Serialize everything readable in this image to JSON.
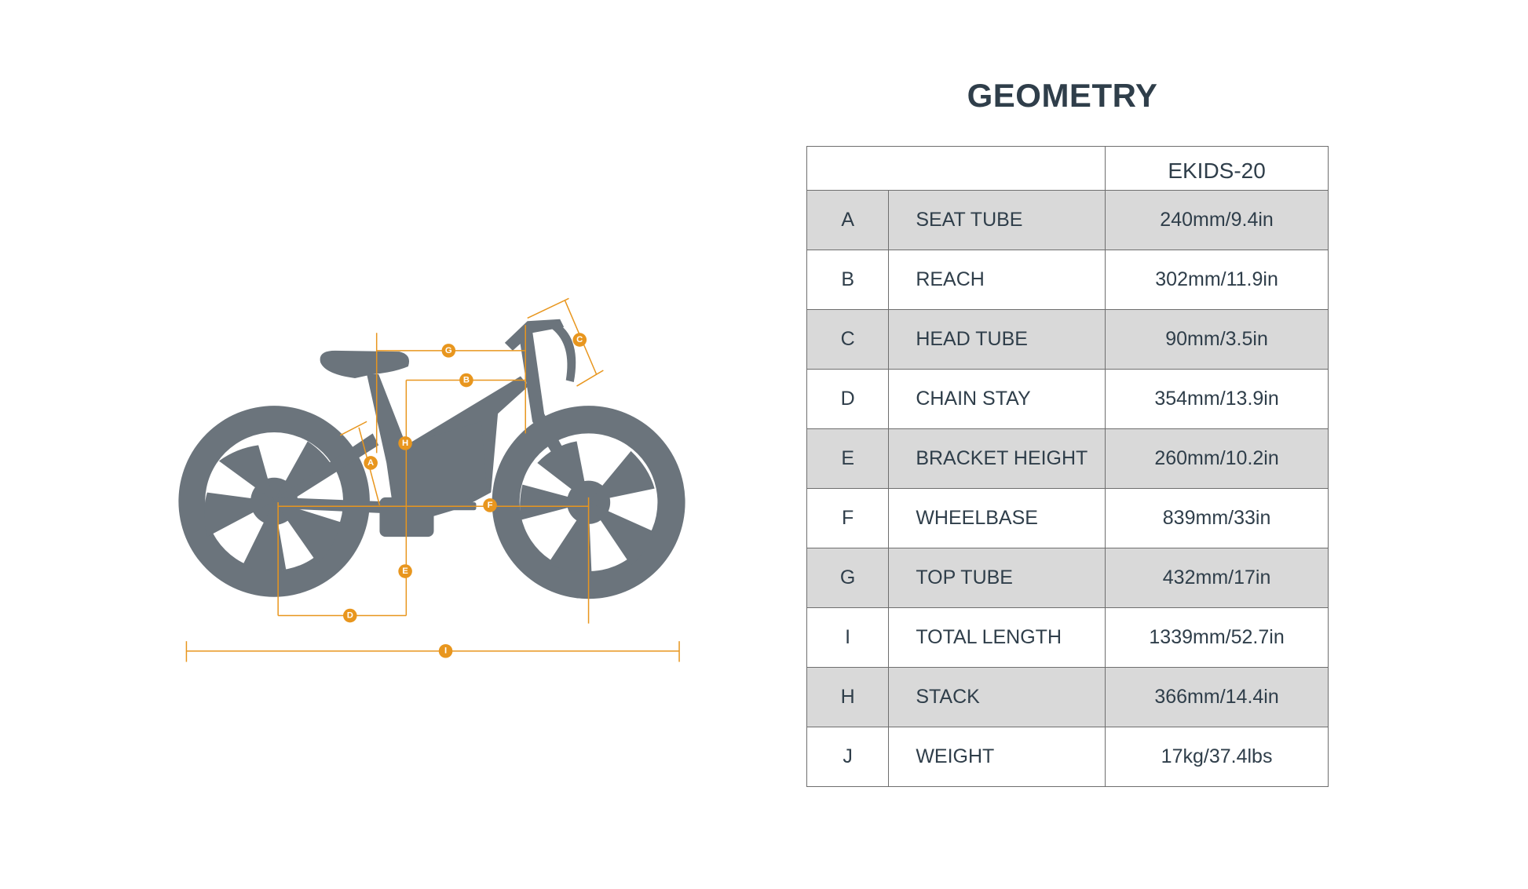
{
  "title": "GEOMETRY",
  "table": {
    "model": "EKIDS-20",
    "rows": [
      {
        "letter": "A",
        "name": "SEAT TUBE",
        "value": "240mm/9.4in"
      },
      {
        "letter": "B",
        "name": "REACH",
        "value": "302mm/11.9in"
      },
      {
        "letter": "C",
        "name": "HEAD TUBE",
        "value": "90mm/3.5in"
      },
      {
        "letter": "D",
        "name": "CHAIN STAY",
        "value": "354mm/13.9in"
      },
      {
        "letter": "E",
        "name": "BRACKET HEIGHT",
        "value": "260mm/10.2in"
      },
      {
        "letter": "F",
        "name": "WHEELBASE",
        "value": "839mm/33in"
      },
      {
        "letter": "G",
        "name": "TOP TUBE",
        "value": "432mm/17in"
      },
      {
        "letter": "I",
        "name": "TOTAL LENGTH",
        "value": "1339mm/52.7in"
      },
      {
        "letter": "H",
        "name": "STACK",
        "value": "366mm/14.4in"
      },
      {
        "letter": "J",
        "name": "WEIGHT",
        "value": "17kg/37.4lbs"
      }
    ]
  },
  "diagram": {
    "labels": {
      "A": "A",
      "B": "B",
      "C": "C",
      "D": "D",
      "E": "E",
      "F": "F",
      "G": "G",
      "H": "H",
      "I": "I"
    },
    "colors": {
      "bike": "#6b747c",
      "dimension": "#e8961e",
      "text": "#2f3e4a",
      "row_shade": "#d9d9d9"
    }
  }
}
